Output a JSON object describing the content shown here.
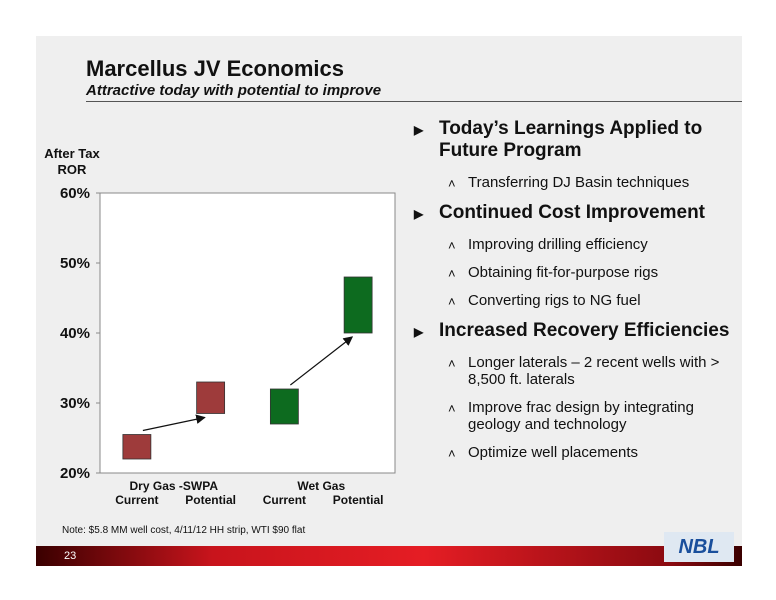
{
  "title": "Marcellus JV Economics",
  "subtitle": "Attractive today with potential to improve",
  "chart_data": {
    "type": "floating-bar",
    "y_label": [
      "After Tax",
      "ROR"
    ],
    "groups": [
      "Dry Gas -SWPA",
      "Wet Gas"
    ],
    "categories": [
      "Current",
      "Potential",
      "Current",
      "Potential"
    ],
    "low": [
      22,
      28.5,
      27,
      40
    ],
    "high": [
      25.5,
      33,
      32,
      48
    ],
    "colors": [
      "#9e3b3b",
      "#9e3b3b",
      "#0d6b1f",
      "#0d6b1f"
    ],
    "ylim": [
      20,
      60
    ],
    "yticks": [
      {
        "value": 20,
        "label": "20%"
      },
      {
        "value": 30,
        "label": "30%"
      },
      {
        "value": 40,
        "label": "40%"
      },
      {
        "value": 50,
        "label": "50%"
      },
      {
        "value": 60,
        "label": "60%"
      }
    ]
  },
  "bullets": [
    {
      "text": "Today’s Learnings Applied to Future Program",
      "subs": [
        "Transferring DJ Basin techniques"
      ]
    },
    {
      "text": "Continued Cost Improvement",
      "subs": [
        "Improving drilling efficiency",
        "Obtaining fit-for-purpose rigs",
        "Converting rigs to NG fuel"
      ]
    },
    {
      "text": "Increased Recovery Efficiencies",
      "subs": [
        "Longer laterals – 2 recent wells with > 8,500 ft. laterals",
        "Improve frac design by integrating geology and technology",
        "Optimize well placements"
      ]
    }
  ],
  "note": "Note: $5.8 MM well cost, 4/11/12 HH strip, WTI $90 flat",
  "page_number": "23",
  "logo": "NBL"
}
